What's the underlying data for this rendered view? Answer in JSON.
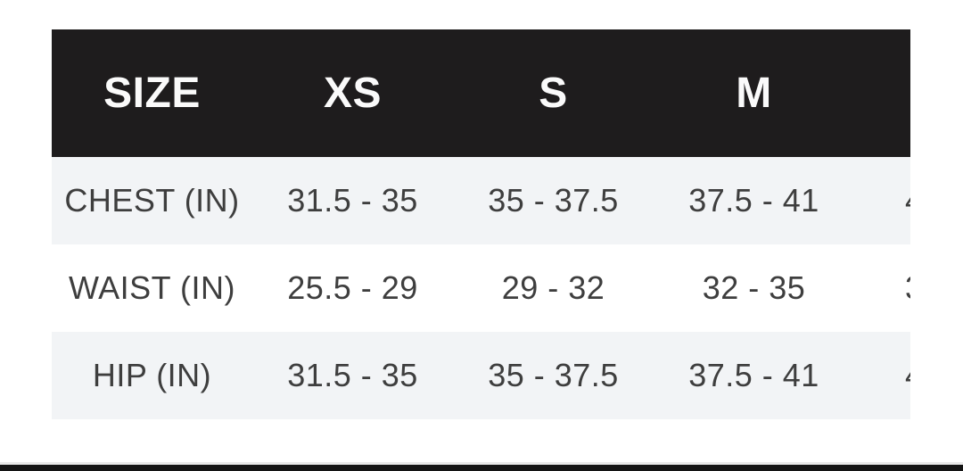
{
  "size_chart": {
    "columns": [
      "SIZE",
      "XS",
      "S",
      "M"
    ],
    "rows": [
      {
        "label": "CHEST (IN)",
        "values": [
          "31.5 - 35",
          "35 - 37.5",
          "37.5 - 41"
        ],
        "clipped_value": "4"
      },
      {
        "label": "WAIST (IN)",
        "values": [
          "25.5 - 29",
          "29 - 32",
          "32 - 35"
        ],
        "clipped_value": "3"
      },
      {
        "label": "HIP (IN)",
        "values": [
          "31.5 - 35",
          "35 - 37.5",
          "37.5 - 41"
        ],
        "clipped_value": "4"
      }
    ],
    "colors": {
      "page_background": "#ffffff",
      "header_background": "#1e1c1d",
      "header_text": "#fafafa",
      "zebra_row_background": "#f2f4f6",
      "plain_row_background": "#ffffff",
      "body_text": "#3e3e3e",
      "bottom_bar": "#141414",
      "divider_line": "#e9e9e9"
    }
  }
}
